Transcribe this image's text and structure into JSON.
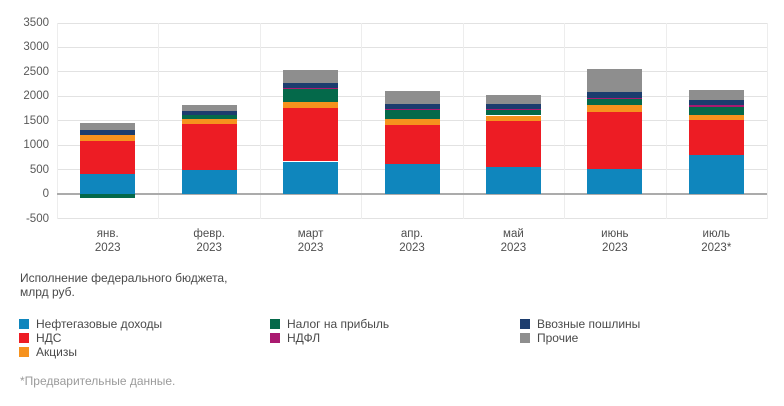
{
  "caption": {
    "line1": "Исполнение федерального бюджета,",
    "line2": "млрд руб."
  },
  "footnote": "*Предварительные данные.",
  "chart_data": {
    "type": "bar",
    "stacked": true,
    "title": "Исполнение федерального бюджета, млрд руб.",
    "ylim": [
      -500,
      3500
    ],
    "yticks": [
      3500,
      3000,
      2500,
      2000,
      1500,
      1000,
      500,
      0,
      -500
    ],
    "grid": true,
    "categories": [
      {
        "month": "янв.",
        "year": "2023"
      },
      {
        "month": "февр.",
        "year": "2023"
      },
      {
        "month": "март",
        "year": "2023"
      },
      {
        "month": "апр.",
        "year": "2023"
      },
      {
        "month": "май",
        "year": "2023"
      },
      {
        "month": "июнь",
        "year": "2023"
      },
      {
        "month": "июль",
        "year": "2023*"
      }
    ],
    "series": [
      {
        "name": "Нефтегазовые доходы",
        "color": "#0f86bd",
        "values": [
          420,
          505,
          670,
          620,
          555,
          510,
          810
        ]
      },
      {
        "name": "НДС",
        "color": "#ed1c24",
        "values": [
          670,
          935,
          1095,
          800,
          935,
          1170,
          700
        ]
      },
      {
        "name": "Акцизы",
        "color": "#f6921e",
        "values": [
          115,
          100,
          115,
          125,
          120,
          135,
          115
        ]
      },
      {
        "name": "Налог на прибыль",
        "color": "#04694a",
        "values": [
          -75,
          80,
          275,
          190,
          115,
          150,
          155
        ]
      },
      {
        "name": "НДФЛ",
        "color": "#aa1a70",
        "values": [
          0,
          0,
          10,
          15,
          10,
          10,
          45
        ]
      },
      {
        "name": "Ввозные пошлины",
        "color": "#1c3d6e",
        "values": [
          100,
          80,
          100,
          100,
          105,
          115,
          100
        ]
      },
      {
        "name": "Прочие",
        "color": "#8e8e8e",
        "values": [
          145,
          125,
          280,
          265,
          195,
          480,
          205
        ]
      }
    ],
    "legend_position": "bottom"
  }
}
